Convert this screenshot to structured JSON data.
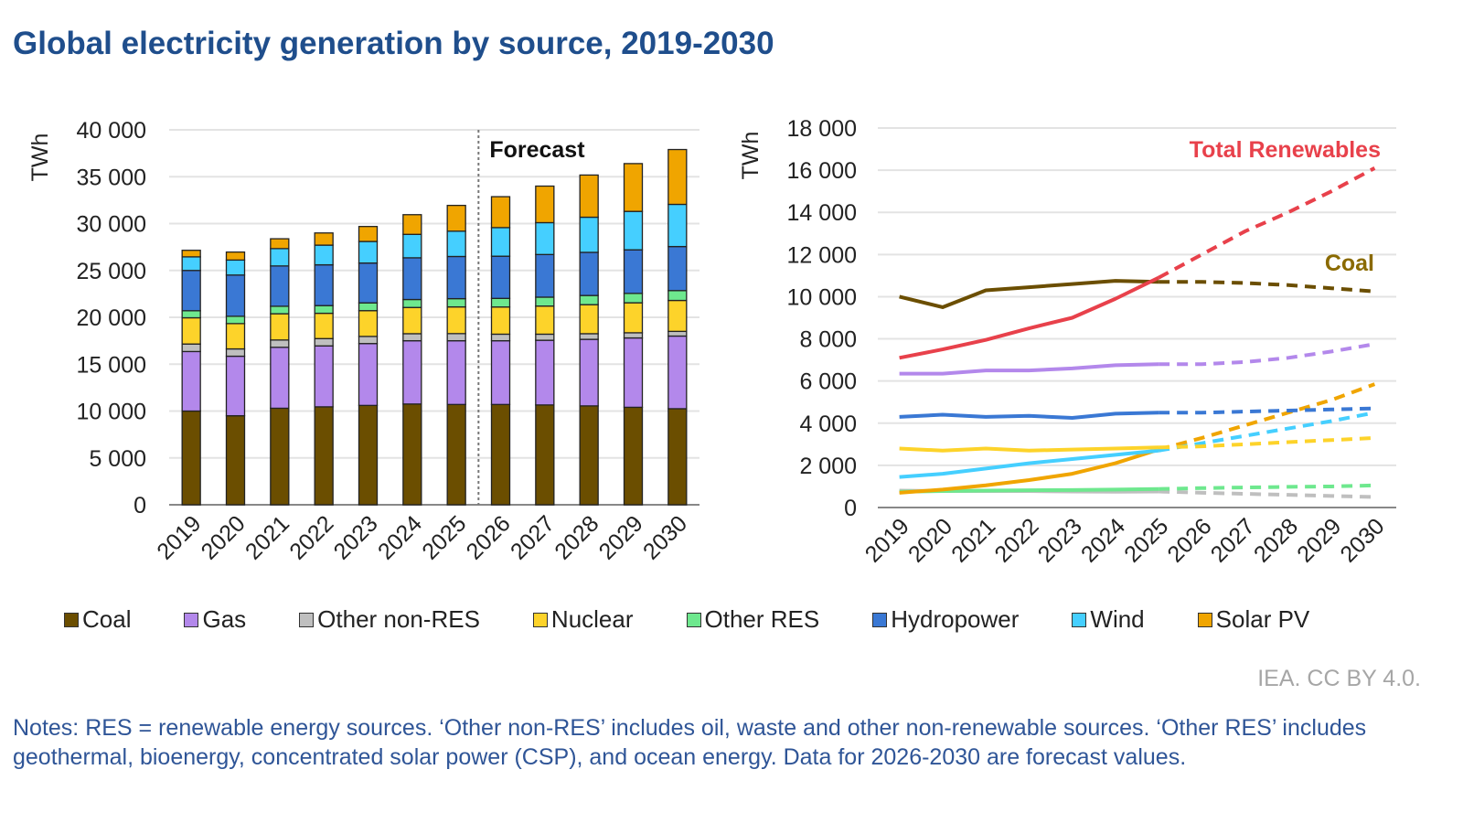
{
  "title": "Global electricity generation by source, 2019-2030",
  "credit": "IEA. CC BY 4.0.",
  "notes": "Notes: RES = renewable energy sources. ‘Other non-RES’ includes oil, waste and other non-renewable sources. ‘Other RES’ includes geothermal, bioenergy, concentrated solar power (CSP), and ocean energy. Data for 2026-2030 are forecast values.",
  "legend": [
    {
      "name": "Coal",
      "color": "#6b4e00"
    },
    {
      "name": "Gas",
      "color": "#b388eb"
    },
    {
      "name": "Other non-RES",
      "color": "#bfbfbf"
    },
    {
      "name": "Nuclear",
      "color": "#fdd32a"
    },
    {
      "name": "Other RES",
      "color": "#6ee88e"
    },
    {
      "name": "Hydropower",
      "color": "#3a78d4"
    },
    {
      "name": "Wind",
      "color": "#45cfff"
    },
    {
      "name": "Solar PV",
      "color": "#f0a500"
    }
  ],
  "chart_data": [
    {
      "type": "bar",
      "stacked": true,
      "ylabel": "TWh",
      "ylim": [
        0,
        40000
      ],
      "yticks": [
        "0",
        "5 000",
        "10 000",
        "15 000",
        "20 000",
        "25 000",
        "30 000",
        "35 000",
        "40 000"
      ],
      "grid": true,
      "annotation": "Forecast",
      "forecast_from": "2026",
      "categories": [
        "2019",
        "2020",
        "2021",
        "2022",
        "2023",
        "2024",
        "2025",
        "2026",
        "2027",
        "2028",
        "2029",
        "2030"
      ],
      "series": [
        {
          "name": "Coal",
          "color": "#6b4e00",
          "values": [
            10000,
            9500,
            10300,
            10450,
            10600,
            10750,
            10700,
            10700,
            10650,
            10550,
            10400,
            10250
          ]
        },
        {
          "name": "Gas",
          "color": "#b388eb",
          "values": [
            6350,
            6350,
            6500,
            6500,
            6600,
            6750,
            6800,
            6800,
            6900,
            7100,
            7400,
            7750
          ]
        },
        {
          "name": "Other non-RES",
          "color": "#bfbfbf",
          "values": [
            800,
            780,
            780,
            780,
            760,
            750,
            760,
            700,
            650,
            600,
            550,
            500
          ]
        },
        {
          "name": "Nuclear",
          "color": "#fdd32a",
          "values": [
            2800,
            2700,
            2800,
            2700,
            2750,
            2800,
            2850,
            2900,
            3000,
            3100,
            3200,
            3300
          ]
        },
        {
          "name": "Other RES",
          "color": "#6ee88e",
          "values": [
            750,
            780,
            800,
            820,
            830,
            850,
            880,
            920,
            950,
            980,
            1000,
            1050
          ]
        },
        {
          "name": "Hydropower",
          "color": "#3a78d4",
          "values": [
            4300,
            4400,
            4300,
            4350,
            4250,
            4450,
            4500,
            4500,
            4550,
            4600,
            4650,
            4700
          ]
        },
        {
          "name": "Wind",
          "color": "#45cfff",
          "values": [
            1450,
            1600,
            1850,
            2100,
            2300,
            2500,
            2700,
            3050,
            3400,
            3750,
            4100,
            4500
          ]
        },
        {
          "name": "Solar PV",
          "color": "#f0a500",
          "values": [
            700,
            850,
            1050,
            1300,
            1600,
            2100,
            2750,
            3300,
            3900,
            4500,
            5100,
            5850
          ]
        }
      ]
    },
    {
      "type": "line",
      "ylabel": "TWh",
      "ylim": [
        0,
        18000
      ],
      "yticks": [
        "0",
        "2 000",
        "4 000",
        "6 000",
        "8 000",
        "10 000",
        "12 000",
        "14 000",
        "16 000",
        "18 000"
      ],
      "grid": true,
      "dashed_from": "2025",
      "categories": [
        "2019",
        "2020",
        "2021",
        "2022",
        "2023",
        "2024",
        "2025",
        "2026",
        "2027",
        "2028",
        "2029",
        "2030"
      ],
      "series": [
        {
          "name": "Total Renewables",
          "label": "Total Renewables",
          "color": "#e8414b",
          "values": [
            7100,
            7500,
            7950,
            8500,
            9000,
            9900,
            10900,
            12000,
            13100,
            14000,
            15000,
            16100
          ]
        },
        {
          "name": "Coal",
          "label": "Coal",
          "color": "#6b4e00",
          "values": [
            10000,
            9500,
            10300,
            10450,
            10600,
            10750,
            10700,
            10700,
            10650,
            10550,
            10400,
            10250
          ]
        },
        {
          "name": "Gas",
          "color": "#b388eb",
          "values": [
            6350,
            6350,
            6500,
            6500,
            6600,
            6750,
            6800,
            6800,
            6900,
            7100,
            7400,
            7750
          ]
        },
        {
          "name": "Hydropower",
          "color": "#3a78d4",
          "values": [
            4300,
            4400,
            4300,
            4350,
            4250,
            4450,
            4500,
            4500,
            4550,
            4600,
            4650,
            4700
          ]
        },
        {
          "name": "Nuclear",
          "color": "#fdd32a",
          "values": [
            2800,
            2700,
            2800,
            2700,
            2750,
            2800,
            2850,
            2900,
            3000,
            3100,
            3200,
            3300
          ]
        },
        {
          "name": "Wind",
          "color": "#45cfff",
          "values": [
            1450,
            1600,
            1850,
            2100,
            2300,
            2500,
            2700,
            3050,
            3400,
            3750,
            4100,
            4500
          ]
        },
        {
          "name": "Solar PV",
          "color": "#f0a500",
          "values": [
            700,
            850,
            1050,
            1300,
            1600,
            2100,
            2750,
            3300,
            3900,
            4500,
            5100,
            5850
          ]
        },
        {
          "name": "Other RES",
          "color": "#6ee88e",
          "values": [
            750,
            780,
            800,
            820,
            830,
            850,
            880,
            920,
            950,
            980,
            1000,
            1050
          ]
        },
        {
          "name": "Other non-RES",
          "color": "#bfbfbf",
          "values": [
            800,
            780,
            780,
            780,
            760,
            750,
            760,
            700,
            650,
            600,
            550,
            500
          ]
        }
      ]
    }
  ]
}
